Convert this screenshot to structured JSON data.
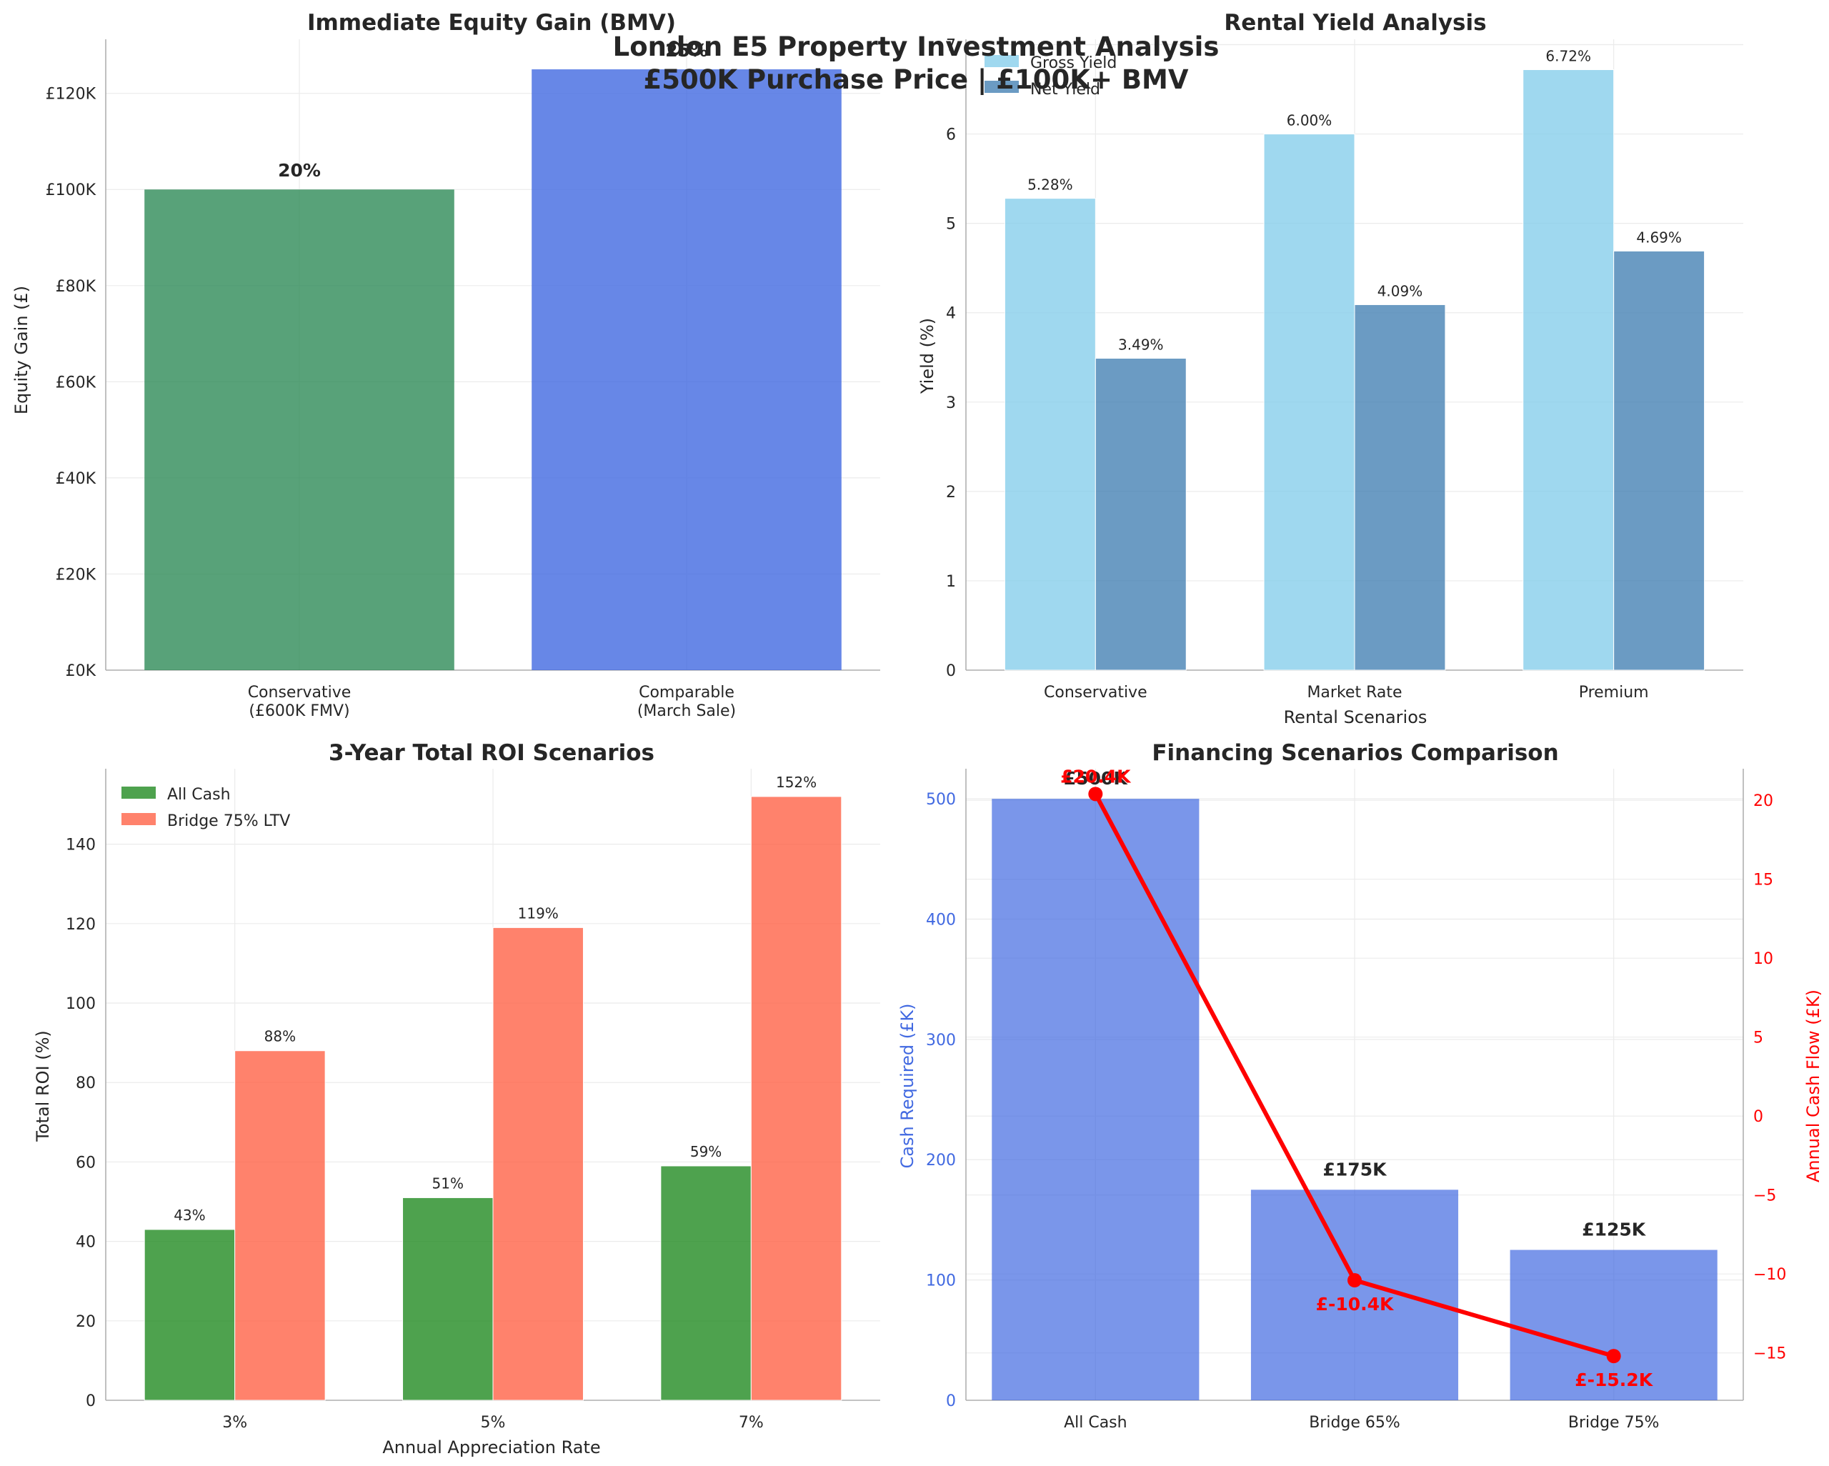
{
  "suptitle": {
    "line1": "London E5 Property Investment Analysis",
    "line2": "£500K Purchase Price | £100K+ BMV"
  },
  "colors": {
    "green": "#2e8b57",
    "royal_blue": "#4169e1",
    "sky_blue": "#87ceeb",
    "steel_blue": "#4682b4",
    "cash_green": "#228b22",
    "tomato": "#ff6347",
    "line_red": "#ff0000"
  },
  "chart_data": [
    {
      "id": "equity",
      "type": "bar",
      "title": "Immediate Equity Gain (BMV)",
      "xlabel": "",
      "ylabel": "Equity Gain (£)",
      "categories": [
        "Conservative\n(£600K FMV)",
        "Comparable\n(March Sale)"
      ],
      "values": [
        100000,
        125000
      ],
      "bar_labels": [
        "20%",
        "25%"
      ],
      "colors": [
        "#2e8b57",
        "#4169e1"
      ],
      "ylim": [
        0,
        131250
      ],
      "yticks": [
        0,
        20000,
        40000,
        60000,
        80000,
        100000,
        120000
      ],
      "ytick_labels": [
        "£0K",
        "£20K",
        "£40K",
        "£60K",
        "£80K",
        "£100K",
        "£120K"
      ],
      "grid": true
    },
    {
      "id": "yield",
      "type": "bar",
      "title": "Rental Yield Analysis",
      "xlabel": "Rental Scenarios",
      "ylabel": "Yield (%)",
      "categories": [
        "Conservative",
        "Market Rate",
        "Premium"
      ],
      "series": [
        {
          "name": "Gross Yield",
          "values": [
            5.28,
            6.0,
            6.72
          ],
          "labels": [
            "5.28%",
            "6.00%",
            "6.72%"
          ],
          "color": "#87ceeb"
        },
        {
          "name": "Net Yield",
          "values": [
            3.49,
            4.09,
            4.69
          ],
          "labels": [
            "3.49%",
            "4.09%",
            "4.69%"
          ],
          "color": "#4682b4"
        }
      ],
      "ylim": [
        0,
        7.06
      ],
      "yticks": [
        0,
        1,
        2,
        3,
        4,
        5,
        6,
        7
      ],
      "ytick_labels": [
        "0",
        "1",
        "2",
        "3",
        "4",
        "5",
        "6",
        "7"
      ],
      "legend": "top-left",
      "grid": true
    },
    {
      "id": "roi",
      "type": "bar",
      "title": "3-Year Total ROI Scenarios",
      "xlabel": "Annual Appreciation Rate",
      "ylabel": "Total ROI (%)",
      "categories": [
        "3%",
        "5%",
        "7%"
      ],
      "series": [
        {
          "name": "All Cash",
          "values": [
            43,
            51,
            59
          ],
          "labels": [
            "43%",
            "51%",
            "59%"
          ],
          "color": "#228b22"
        },
        {
          "name": "Bridge 75% LTV",
          "values": [
            88,
            119,
            152
          ],
          "labels": [
            "88%",
            "119%",
            "152%"
          ],
          "color": "#ff6347"
        }
      ],
      "ylim": [
        0,
        159
      ],
      "yticks": [
        0,
        20,
        40,
        60,
        80,
        100,
        120,
        140
      ],
      "ytick_labels": [
        "0",
        "20",
        "40",
        "60",
        "80",
        "100",
        "120",
        "140"
      ],
      "legend": "top-left",
      "grid": true
    },
    {
      "id": "financing",
      "type": "bar",
      "title": "Financing Scenarios Comparison",
      "xlabel": "",
      "ylabel": "Cash Required (£K)",
      "ylabel_right": "Annual Cash Flow (£K)",
      "categories": [
        "All Cash",
        "Bridge 65%",
        "Bridge 75%"
      ],
      "bars": {
        "values": [
          500,
          175,
          125
        ],
        "labels": [
          "£500K",
          "£175K",
          "£125K"
        ],
        "color": "#4169e1"
      },
      "line": {
        "values": [
          20.4,
          -10.4,
          -15.2
        ],
        "labels": [
          "£20.4K",
          "£-10.4K",
          "£-15.2K"
        ],
        "color": "#ff0000"
      },
      "ylim": [
        0,
        525
      ],
      "yticks": [
        0,
        100,
        200,
        300,
        400,
        500
      ],
      "ytick_labels": [
        "0",
        "100",
        "200",
        "300",
        "400",
        "500"
      ],
      "ylim_right": [
        -18,
        22
      ],
      "yticks_right": [
        -15,
        -10,
        -5,
        0,
        5,
        10,
        15,
        20
      ],
      "ytick_labels_right": [
        "−15",
        "−10",
        "−5",
        "0",
        "5",
        "10",
        "15",
        "20"
      ],
      "grid": true
    }
  ]
}
